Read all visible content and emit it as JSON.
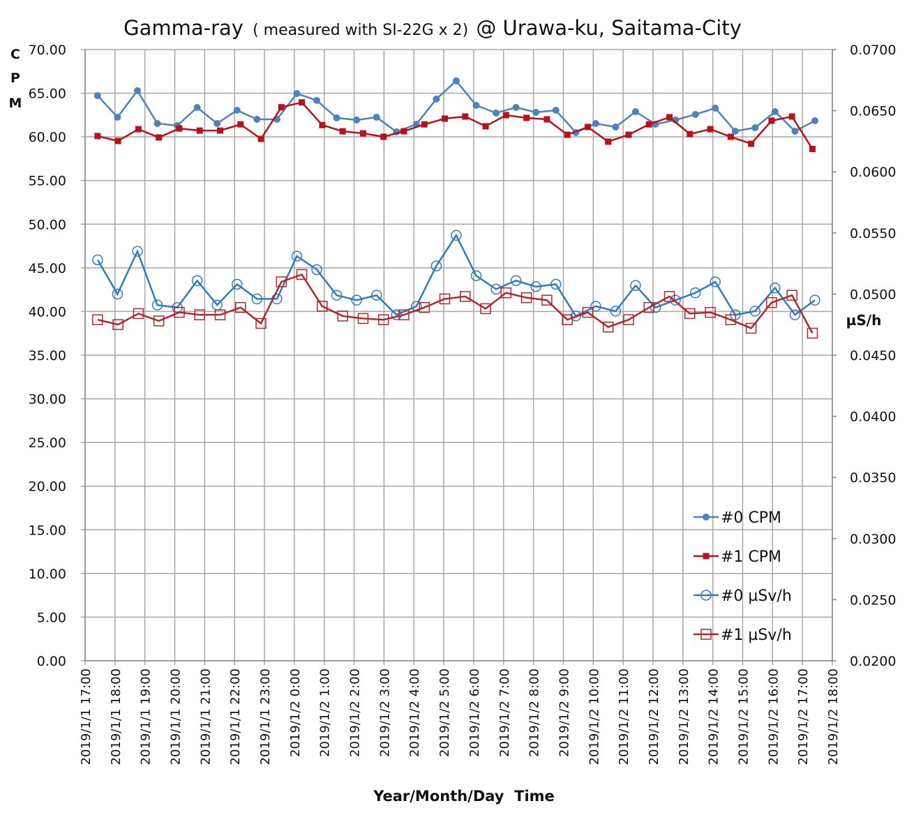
{
  "chart_data": {
    "type": "line",
    "title": {
      "main": "Gamma-ray",
      "sub": "( measured with SI-22G x 2)",
      "place": "@ Urawa-ku, Saitama-City"
    },
    "xlabel": "Year/Month/Day  Time",
    "ylabel_left": [
      "C",
      "P",
      "M"
    ],
    "ylabel_right": "µS/h",
    "x_unit": "minutes since 2019/1/1 17:00",
    "xlim_minutes": [
      0,
      1500
    ],
    "ylim_left": [
      0,
      70
    ],
    "ylim_right": [
      0.02,
      0.07
    ],
    "grid": true,
    "legend_position": "bottom-right",
    "x_tick_labels": [
      "2019/1/1 17:00",
      "2019/1/1 18:00",
      "2019/1/1 19:00",
      "2019/1/1 20:00",
      "2019/1/1 21:00",
      "2019/1/1 22:00",
      "2019/1/1 23:00",
      "2019/1/2 0:00",
      "2019/1/2 1:00",
      "2019/1/2 2:00",
      "2019/1/2 3:00",
      "2019/1/2 4:00",
      "2019/1/2 5:00",
      "2019/1/2 6:00",
      "2019/1/2 7:00",
      "2019/1/2 8:00",
      "2019/1/2 9:00",
      "2019/1/2 10:00",
      "2019/1/2 11:00",
      "2019/1/2 12:00",
      "2019/1/2 13:00",
      "2019/1/2 14:00",
      "2019/1/2 15:00",
      "2019/1/2 16:00",
      "2019/1/2 17:00",
      "2019/1/2 18:00"
    ],
    "y_left_tick_labels": [
      "0.00",
      "5.00",
      "10.00",
      "15.00",
      "20.00",
      "25.00",
      "30.00",
      "35.00",
      "40.00",
      "45.00",
      "50.00",
      "55.00",
      "60.00",
      "65.00",
      "70.00"
    ],
    "y_right_tick_labels": [
      "0.0200",
      "0.0250",
      "0.0300",
      "0.0350",
      "0.0400",
      "0.0450",
      "0.0500",
      "0.0550",
      "0.0600",
      "0.0650",
      "0.0700"
    ],
    "series": [
      {
        "name": "#0 CPM",
        "axis": "left",
        "marker": "filled-circle",
        "color": "#4f81bd",
        "start_minutes": 25,
        "interval_minutes": 40,
        "values": [
          64.73,
          62.25,
          65.29,
          61.53,
          61.29,
          63.37,
          61.53,
          63.05,
          62.01,
          62.01,
          64.96,
          64.17,
          62.17,
          61.93,
          62.25,
          60.57,
          61.45,
          64.33,
          66.41,
          63.61,
          62.73,
          63.37,
          62.81,
          63.05,
          60.49,
          61.53,
          61.13,
          62.89,
          61.45,
          61.93,
          62.57,
          63.29,
          60.65,
          61.05,
          62.89,
          60.65,
          61.85
        ]
      },
      {
        "name": "#1 CPM",
        "axis": "left",
        "marker": "filled-square",
        "color": "#b5121b",
        "start_minutes": 25,
        "interval_minutes": 41,
        "values": [
          60.09,
          59.53,
          60.88,
          59.93,
          60.96,
          60.72,
          60.72,
          61.43,
          59.77,
          63.39,
          63.95,
          61.35,
          60.64,
          60.4,
          60.01,
          60.64,
          61.43,
          62.09,
          62.33,
          61.21,
          62.49,
          62.17,
          62.01,
          60.24,
          61.13,
          59.45,
          60.24,
          61.43,
          62.25,
          60.32,
          60.88,
          60.01,
          59.21,
          61.85,
          62.33,
          58.61
        ]
      },
      {
        "name": "#0 µSv/h",
        "axis": "right",
        "marker": "open-circle",
        "color": "#2e7bbf",
        "start_minutes": 25,
        "interval_minutes": 40,
        "values": [
          0.0528,
          0.05,
          0.0535,
          0.0491,
          0.0489,
          0.0511,
          0.0491,
          0.0508,
          0.0496,
          0.0496,
          0.0531,
          0.052,
          0.0499,
          0.0495,
          0.0499,
          0.0483,
          0.049,
          0.0523,
          0.0548,
          0.0515,
          0.0504,
          0.0511,
          0.0506,
          0.0508,
          0.0482,
          0.049,
          0.0486,
          0.0507,
          0.0489,
          0.0495,
          0.0501,
          0.051,
          0.0483,
          0.0486,
          0.0505,
          0.0483,
          0.0495
        ]
      },
      {
        "name": "#1 µSv/h",
        "axis": "right",
        "marker": "open-square",
        "color": "#b3262a",
        "start_minutes": 25,
        "interval_minutes": 41,
        "values": [
          0.0479,
          0.0475,
          0.0484,
          0.0478,
          0.0485,
          0.0483,
          0.0483,
          0.0489,
          0.0476,
          0.051,
          0.0516,
          0.049,
          0.0482,
          0.048,
          0.0479,
          0.0483,
          0.0489,
          0.0496,
          0.0498,
          0.0488,
          0.0501,
          0.0497,
          0.0495,
          0.0479,
          0.0485,
          0.0473,
          0.0479,
          0.0489,
          0.0498,
          0.0484,
          0.0485,
          0.0479,
          0.0472,
          0.0493,
          0.0499,
          0.0468
        ]
      }
    ]
  }
}
